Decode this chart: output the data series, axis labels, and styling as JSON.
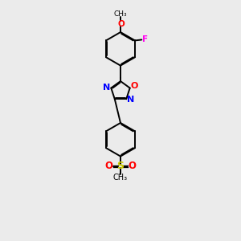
{
  "background_color": "#ebebeb",
  "bond_color": "#000000",
  "atom_colors": {
    "O": "#ff0000",
    "N": "#0000ff",
    "F": "#ff00ee",
    "S": "#cccc00",
    "C": "#000000"
  },
  "bond_lw": 1.4,
  "dbo": 0.055,
  "xlim": [
    3.0,
    7.5
  ],
  "ylim": [
    0.5,
    15.5
  ]
}
